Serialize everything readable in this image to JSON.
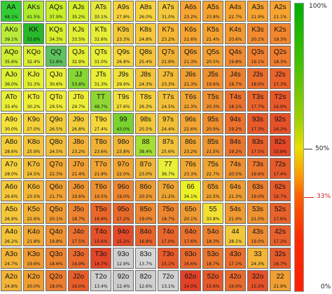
{
  "ranks": [
    "A",
    "K",
    "Q",
    "J",
    "T",
    "9",
    "8",
    "7",
    "6",
    "5",
    "4",
    "3",
    "2"
  ],
  "rows": [
    [
      [
        "AA",
        "68.1%"
      ],
      [
        "AKs",
        "41.5%"
      ],
      [
        "AQs",
        "37.9%"
      ],
      [
        "AJs",
        "35.2%"
      ],
      [
        "ATs",
        "33.1%"
      ],
      [
        "A9s",
        "27.8%"
      ],
      [
        "A8s",
        "26.0%"
      ],
      [
        "A7s",
        "31.0%"
      ],
      [
        "A6s",
        "23.2%"
      ],
      [
        "A5s",
        "23.8%"
      ],
      [
        "A4s",
        "22.7%"
      ],
      [
        "A3s",
        "21.9%"
      ],
      [
        "A2s",
        "21.1%"
      ]
    ],
    [
      [
        "AKo",
        "39.1%"
      ],
      [
        "KK",
        "53.8%"
      ],
      [
        "KQs",
        "34.3%"
      ],
      [
        "KJs",
        "33.5%"
      ],
      [
        "KTs",
        "31.6%"
      ],
      [
        "K9s",
        "23.3%"
      ],
      [
        "K8s",
        "24.8%"
      ],
      [
        "K7s",
        "23.2%"
      ],
      [
        "K6s",
        "21.6%"
      ],
      [
        "K5s",
        "21.4%"
      ],
      [
        "K4s",
        "20.6%"
      ],
      [
        "K3s",
        "20.1%"
      ],
      [
        "K2s",
        "19.3%"
      ]
    ],
    [
      [
        "AQo",
        "35.6%"
      ],
      [
        "KQo",
        "32.4%"
      ],
      [
        "QQ",
        "51.8%"
      ],
      [
        "QJs",
        "32.9%"
      ],
      [
        "QTs",
        "31.0%"
      ],
      [
        "Q9s",
        "26.8%"
      ],
      [
        "Q8s",
        "25.4%"
      ],
      [
        "Q7s",
        "21.9%"
      ],
      [
        "Q6s",
        "21.3%"
      ],
      [
        "Q5s",
        "20.5%"
      ],
      [
        "Q4s",
        "19.8%"
      ],
      [
        "Q3s",
        "19.1%"
      ],
      [
        "Q2s",
        "18.3%"
      ]
    ],
    [
      [
        "AJo",
        "36.0%"
      ],
      [
        "KJo",
        "31.3%"
      ],
      [
        "QJo",
        "30.6%"
      ],
      [
        "JJ",
        "53.8%"
      ],
      [
        "JTs",
        "31.3%"
      ],
      [
        "J9s",
        "29.9%"
      ],
      [
        "J8s",
        "24.3%"
      ],
      [
        "J7s",
        "23.3%"
      ],
      [
        "J6s",
        "21.3%"
      ],
      [
        "J5s",
        "19.6%"
      ],
      [
        "J4s",
        "18.7%"
      ],
      [
        "J3s",
        "18.0%"
      ],
      [
        "J2s",
        "17.3%"
      ]
    ],
    [
      [
        "ATo",
        "33.4%"
      ],
      [
        "KTo",
        "30.2%"
      ],
      [
        "QTo",
        "29.5%"
      ],
      [
        "JTo",
        "29.7%"
      ],
      [
        "TT",
        "48.7%"
      ],
      [
        "T9s",
        "27.6%"
      ],
      [
        "T8s",
        "26.3%"
      ],
      [
        "T7s",
        "24.5%"
      ],
      [
        "T6s",
        "22.3%"
      ],
      [
        "T5s",
        "20.3%"
      ],
      [
        "T4s",
        "18.1%"
      ],
      [
        "T3s",
        "17.7%"
      ],
      [
        "T2s",
        "16.9%"
      ]
    ],
    [
      [
        "A9o",
        "30.0%"
      ],
      [
        "K9o",
        "27.0%"
      ],
      [
        "Q9o",
        "26.5%"
      ],
      [
        "J9o",
        "26.8%"
      ],
      [
        "T9o",
        "27.4%"
      ],
      [
        "99",
        "43.0%"
      ],
      [
        "98s",
        "25.5%"
      ],
      [
        "97s",
        "24.4%"
      ],
      [
        "96s",
        "22.6%"
      ],
      [
        "95s",
        "20.9%"
      ],
      [
        "94s",
        "19.2%"
      ],
      [
        "93s",
        "17.3%"
      ],
      [
        "92s",
        "16.2%"
      ]
    ],
    [
      [
        "A8o",
        "28.6%"
      ],
      [
        "K8o",
        "25.9%"
      ],
      [
        "Q8o",
        "24.5%"
      ],
      [
        "J8o",
        "23.2%"
      ],
      [
        "T8o",
        "23.6%"
      ],
      [
        "98o",
        "23.8%"
      ],
      [
        "88",
        "38.4%"
      ],
      [
        "87s",
        "25.6%"
      ],
      [
        "86s",
        "23.2%"
      ],
      [
        "85s",
        "21.5%"
      ],
      [
        "84s",
        "19.2%"
      ],
      [
        "83s",
        "17.5%"
      ],
      [
        "82s",
        "15.8%"
      ]
    ],
    [
      [
        "A7o",
        "28.0%"
      ],
      [
        "K7o",
        "24.5%"
      ],
      [
        "Q7o",
        "22.3%"
      ],
      [
        "J7o",
        "21.4%"
      ],
      [
        "T7o",
        "21.9%"
      ],
      [
        "97o",
        "22.0%"
      ],
      [
        "87o",
        "23.0%"
      ],
      [
        "77",
        "36.7%"
      ],
      [
        "76s",
        "23.3%"
      ],
      [
        "75s",
        "22.7%"
      ],
      [
        "74s",
        "20.5%"
      ],
      [
        "73s",
        "19.6%"
      ],
      [
        "72s",
        "17.4%"
      ]
    ],
    [
      [
        "A6o",
        "26.6%"
      ],
      [
        "K6o",
        "23.5%"
      ],
      [
        "Q6o",
        "21.7%"
      ],
      [
        "J6o",
        "19.6%"
      ],
      [
        "T6o",
        "19.5%"
      ],
      [
        "96o",
        "19.0%"
      ],
      [
        "86o",
        "20.5%"
      ],
      [
        "76o",
        "21.2%"
      ],
      [
        "66",
        "34.1%"
      ],
      [
        "65s",
        "22.5%"
      ],
      [
        "64s",
        "21.3%"
      ],
      [
        "63s",
        "19.0%"
      ],
      [
        "62s",
        "16.7%"
      ]
    ],
    [
      [
        "A5o",
        "26.9%"
      ],
      [
        "K5o",
        "22.6%"
      ],
      [
        "Q5o",
        "20.1%"
      ],
      [
        "J5o",
        "18.7%"
      ],
      [
        "T5o",
        "16.8%"
      ],
      [
        "95o",
        "17.2%"
      ],
      [
        "85o",
        "19.0%"
      ],
      [
        "75o",
        "18.7%"
      ],
      [
        "65o",
        "20.1%"
      ],
      [
        "55",
        "33.8%"
      ],
      [
        "54s",
        "21.9%"
      ],
      [
        "53s",
        "21.0%"
      ],
      [
        "52s",
        "17.6%"
      ]
    ],
    [
      [
        "A4o",
        "26.2%"
      ],
      [
        "K4o",
        "21.8%"
      ],
      [
        "Q4o",
        "19.8%"
      ],
      [
        "J4o",
        "17.5%"
      ],
      [
        "T4o",
        "15.6%"
      ],
      [
        "94o",
        "15.2%"
      ],
      [
        "84o",
        "16.8%"
      ],
      [
        "74o",
        "17.0%"
      ],
      [
        "64o",
        "17.6%"
      ],
      [
        "54o",
        "18.3%"
      ],
      [
        "44",
        "28.1%"
      ],
      [
        "43s",
        "19.0%"
      ],
      [
        "42s",
        "17.2%"
      ]
    ],
    [
      [
        "A3o",
        "24.7%"
      ],
      [
        "K3o",
        "19.6%"
      ],
      [
        "Q3o",
        "18.6%"
      ],
      [
        "J3o",
        "16.9%"
      ],
      [
        "T3o",
        "14.7%"
      ],
      [
        "93o",
        "12.9%"
      ],
      [
        "83o",
        "13.7%"
      ],
      [
        "73o",
        "15.1%"
      ],
      [
        "63o",
        "16.6%"
      ],
      [
        "53o",
        "18.7%"
      ],
      [
        "43o",
        "17.1%"
      ],
      [
        "33",
        "24.3%"
      ],
      [
        "32s",
        "16.7%"
      ]
    ],
    [
      [
        "A2o",
        "24.8%"
      ],
      [
        "K2o",
        "20.0%"
      ],
      [
        "Q2o",
        "18.0%"
      ],
      [
        "J2o",
        "16.0%"
      ],
      [
        "T2o",
        "13.4%"
      ],
      [
        "92o",
        "12.4%"
      ],
      [
        "82o",
        "12.6%"
      ],
      [
        "72o",
        "13.1%"
      ],
      [
        "62o",
        "14.0%"
      ],
      [
        "52o",
        "15.6%"
      ],
      [
        "42o",
        "16.0%"
      ],
      [
        "32o",
        "15.3%"
      ],
      [
        "22",
        "21.9%"
      ]
    ]
  ],
  "cell_colors": [
    [
      "#33cc33",
      "#adeb2c",
      "#c8ee2c",
      "#d5ee2c",
      "#e6e83c",
      "#f7d23c",
      "#f7d23c",
      "#f3c83a",
      "#f7a431",
      "#f5a431",
      "#f7a431",
      "#f7a431",
      "#f7a431"
    ],
    [
      "#b8ec38",
      "#29b829",
      "#d9f02e",
      "#e3ef33",
      "#e7ee36",
      "#f2c838",
      "#f6c839",
      "#f5b633",
      "#f5a431",
      "#f4a131",
      "#f49932",
      "#f38a2f",
      "#f2862e"
    ],
    [
      "#cfee33",
      "#dcef33",
      "#5ec25e",
      "#e4ef33",
      "#eaee36",
      "#f6d53b",
      "#f3c439",
      "#f1b233",
      "#f1a031",
      "#f1a031",
      "#f18a30",
      "#f0802e",
      "#ef7d2d"
    ],
    [
      "#dcef33",
      "#e4ee34",
      "#e8ee34",
      "#86d634",
      "#e8ee34",
      "#f0e13a",
      "#f3c439",
      "#f3bb36",
      "#f09e31",
      "#ef8f30",
      "#ee812e",
      "#ec6e2c",
      "#ea632a"
    ],
    [
      "#e9ee37",
      "#eeee37",
      "#f0ec37",
      "#eeee37",
      "#8fd633",
      "#f2dd3a",
      "#f4cf39",
      "#f2c037",
      "#f0a433",
      "#ee8f30",
      "#ec712d",
      "#ea632a",
      "#e8582a"
    ],
    [
      "#f5e23c",
      "#f5d23b",
      "#f4cd3a",
      "#f3cd3a",
      "#f5d83b",
      "#7ad32f",
      "#f2c83a",
      "#f2bf37",
      "#f1a533",
      "#ee8f30",
      "#ec712d",
      "#e85a2a",
      "#e55129"
    ],
    [
      "#f4cd3a",
      "#f4c439",
      "#f3bf38",
      "#f2b336",
      "#f1b336",
      "#f1b536",
      "#a7de32",
      "#f2c239",
      "#f1a533",
      "#ee9430",
      "#ec752e",
      "#ea5f2b",
      "#e44828"
    ],
    [
      "#f5d23b",
      "#f3bd38",
      "#f1a834",
      "#f19f32",
      "#f0a433",
      "#f1a433",
      "#f0b537",
      "#e9ee37",
      "#f1a833",
      "#f0a533",
      "#ee8f30",
      "#ec782e",
      "#e65a2a"
    ],
    [
      "#f5c73a",
      "#f4b737",
      "#f2a233",
      "#f09431",
      "#ee8f30",
      "#ed8630",
      "#ee9b32",
      "#efa533",
      "#eef028",
      "#f0a432",
      "#ef9d31",
      "#ec7f2e",
      "#e75a2a"
    ],
    [
      "#f5c73a",
      "#f3b036",
      "#f09a32",
      "#ed842f",
      "#e9672b",
      "#e86a2b",
      "#ed862f",
      "#ed842f",
      "#ee9a31",
      "#f3e033",
      "#f09b31",
      "#ef9331",
      "#e8622b"
    ],
    [
      "#f4c339",
      "#f2a834",
      "#ef9331",
      "#ea702d",
      "#e5522a",
      "#e44a28",
      "#e8642b",
      "#e9662b",
      "#ea722d",
      "#ed822f",
      "#f2c83a",
      "#ee8b30",
      "#e8602b"
    ],
    [
      "#f3b437",
      "#f09a32",
      "#ed852f",
      "#e96a2c",
      "#e34528",
      "#cfcfcf",
      "#d5d5d5",
      "#e85b2a",
      "#e9682b",
      "#eb762e",
      "#ea6f2d",
      "#f3b437",
      "#e65b2a"
    ],
    [
      "#f3b437",
      "#f09e32",
      "#ec7d2e",
      "#e85e2a",
      "#cfcfcf",
      "#cccccc",
      "#cfcfcf",
      "#d2d2d2",
      "#e24227",
      "#e75a2a",
      "#e96a2c",
      "#e5532a",
      "#f0a032"
    ]
  ],
  "legend": {
    "ticks": [
      {
        "label": "100%",
        "value": 100
      },
      {
        "label": "50%",
        "value": 50
      },
      {
        "label": "33%",
        "value": 33
      },
      {
        "label": "0%",
        "value": 0
      }
    ]
  }
}
